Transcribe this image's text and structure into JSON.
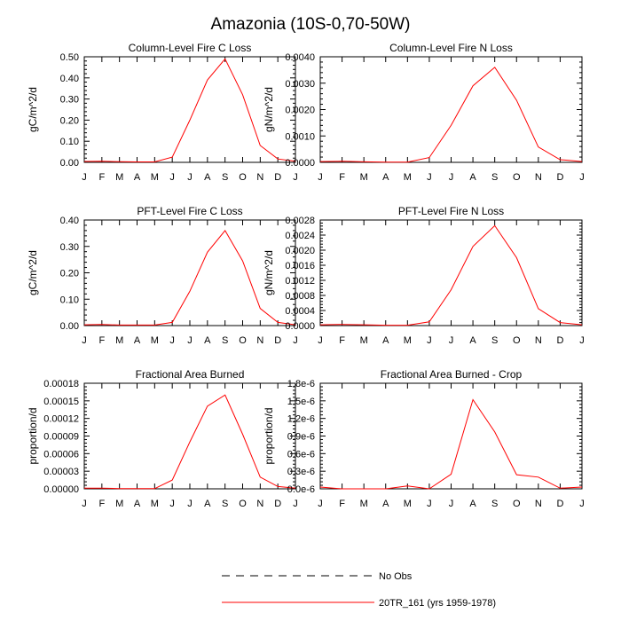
{
  "main_title": "Amazonia (10S-0,70-50W)",
  "legend": [
    {
      "label": "No Obs",
      "style": "dashed",
      "color": "#000000"
    },
    {
      "label": "20TR_161 (yrs 1959-1978)",
      "style": "solid",
      "color": "#ff0000"
    }
  ],
  "chart_data": [
    {
      "type": "line",
      "title": "Column-Level Fire C Loss",
      "ylabel": "gC/m^2/d",
      "xlabel": "",
      "categories": [
        "J",
        "F",
        "M",
        "A",
        "M",
        "J",
        "J",
        "A",
        "S",
        "O",
        "N",
        "D",
        "J"
      ],
      "ylim": [
        0,
        0.5
      ],
      "yticks": [
        "0.00",
        "0.10",
        "0.20",
        "0.30",
        "0.40",
        "0.50"
      ],
      "series": [
        {
          "name": "20TR_161 (yrs 1959-1978)",
          "color": "#ff0000",
          "values": [
            0.004,
            0.005,
            0.003,
            0.002,
            0.002,
            0.025,
            0.2,
            0.39,
            0.49,
            0.32,
            0.08,
            0.016,
            0.005
          ]
        }
      ]
    },
    {
      "type": "line",
      "title": "Column-Level Fire N Loss",
      "ylabel": "gN/m^2/d",
      "xlabel": "",
      "categories": [
        "J",
        "F",
        "M",
        "A",
        "M",
        "J",
        "J",
        "A",
        "S",
        "O",
        "N",
        "D",
        "J"
      ],
      "ylim": [
        0,
        0.004
      ],
      "yticks": [
        "0.0000",
        "0.0010",
        "0.0020",
        "0.0030",
        "0.0040"
      ],
      "series": [
        {
          "name": "20TR_161 (yrs 1959-1978)",
          "color": "#ff0000",
          "values": [
            3e-05,
            4e-05,
            2e-05,
            1e-05,
            1e-05,
            0.00018,
            0.0014,
            0.0029,
            0.0036,
            0.00235,
            0.00058,
            0.0001,
            3e-05
          ]
        }
      ]
    },
    {
      "type": "line",
      "title": "PFT-Level Fire C Loss",
      "ylabel": "gC/m^2/d",
      "xlabel": "",
      "categories": [
        "J",
        "F",
        "M",
        "A",
        "M",
        "J",
        "J",
        "A",
        "S",
        "O",
        "N",
        "D",
        "J"
      ],
      "ylim": [
        0,
        0.4
      ],
      "yticks": [
        "0.00",
        "0.10",
        "0.20",
        "0.30",
        "0.40"
      ],
      "series": [
        {
          "name": "20TR_161 (yrs 1959-1978)",
          "color": "#ff0000",
          "values": [
            0.003,
            0.004,
            0.002,
            0.002,
            0.002,
            0.012,
            0.13,
            0.278,
            0.36,
            0.245,
            0.065,
            0.012,
            0.003
          ]
        }
      ]
    },
    {
      "type": "line",
      "title": "PFT-Level Fire N Loss",
      "ylabel": "gN/m^2/d",
      "xlabel": "",
      "categories": [
        "J",
        "F",
        "M",
        "A",
        "M",
        "J",
        "J",
        "A",
        "S",
        "O",
        "N",
        "D",
        "J"
      ],
      "ylim": [
        0,
        0.0028
      ],
      "yticks": [
        "0.0000",
        "0.0004",
        "0.0008",
        "0.0012",
        "0.0016",
        "0.0020",
        "0.0024",
        "0.0028"
      ],
      "series": [
        {
          "name": "20TR_161 (yrs 1959-1978)",
          "color": "#ff0000",
          "values": [
            2e-05,
            3e-05,
            2e-05,
            1e-05,
            1e-05,
            0.0001,
            0.00095,
            0.0021,
            0.00265,
            0.0018,
            0.00045,
            8e-05,
            2e-05
          ]
        }
      ]
    },
    {
      "type": "line",
      "title": "Fractional Area Burned",
      "ylabel": "proportion/d",
      "xlabel": "",
      "categories": [
        "J",
        "F",
        "M",
        "A",
        "M",
        "J",
        "J",
        "A",
        "S",
        "O",
        "N",
        "D",
        "J"
      ],
      "ylim": [
        0,
        0.00018
      ],
      "yticks": [
        "0.00000",
        "0.00003",
        "0.00006",
        "0.00009",
        "0.00012",
        "0.00015",
        "0.00018"
      ],
      "series": [
        {
          "name": "20TR_161 (yrs 1959-1978)",
          "color": "#ff0000",
          "values": [
            1.2e-06,
            1.2e-06,
            5e-07,
            3e-07,
            3e-07,
            1.5e-05,
            8e-05,
            0.000141,
            0.00016,
            9.3e-05,
            2e-05,
            4e-06,
            1.2e-06
          ]
        }
      ]
    },
    {
      "type": "line",
      "title": "Fractional Area Burned - Crop",
      "ylabel": "proportion/d",
      "xlabel": "",
      "categories": [
        "J",
        "F",
        "M",
        "A",
        "M",
        "J",
        "J",
        "A",
        "S",
        "O",
        "N",
        "D",
        "J"
      ],
      "ylim": [
        0,
        1.8
      ],
      "yunit_suffix": "e-6",
      "yticks": [
        "0.0e-6",
        "0.3e-6",
        "0.6e-6",
        "0.9e-6",
        "1.2e-6",
        "1.5e-6",
        "1.8e-6"
      ],
      "series": [
        {
          "name": "20TR_161 (yrs 1959-1978)",
          "color": "#ff0000",
          "values": [
            0.03,
            0.0,
            0.0,
            0.0,
            0.05,
            0.0,
            0.25,
            1.52,
            0.97,
            0.24,
            0.2,
            0.01,
            0.03
          ]
        }
      ]
    }
  ]
}
